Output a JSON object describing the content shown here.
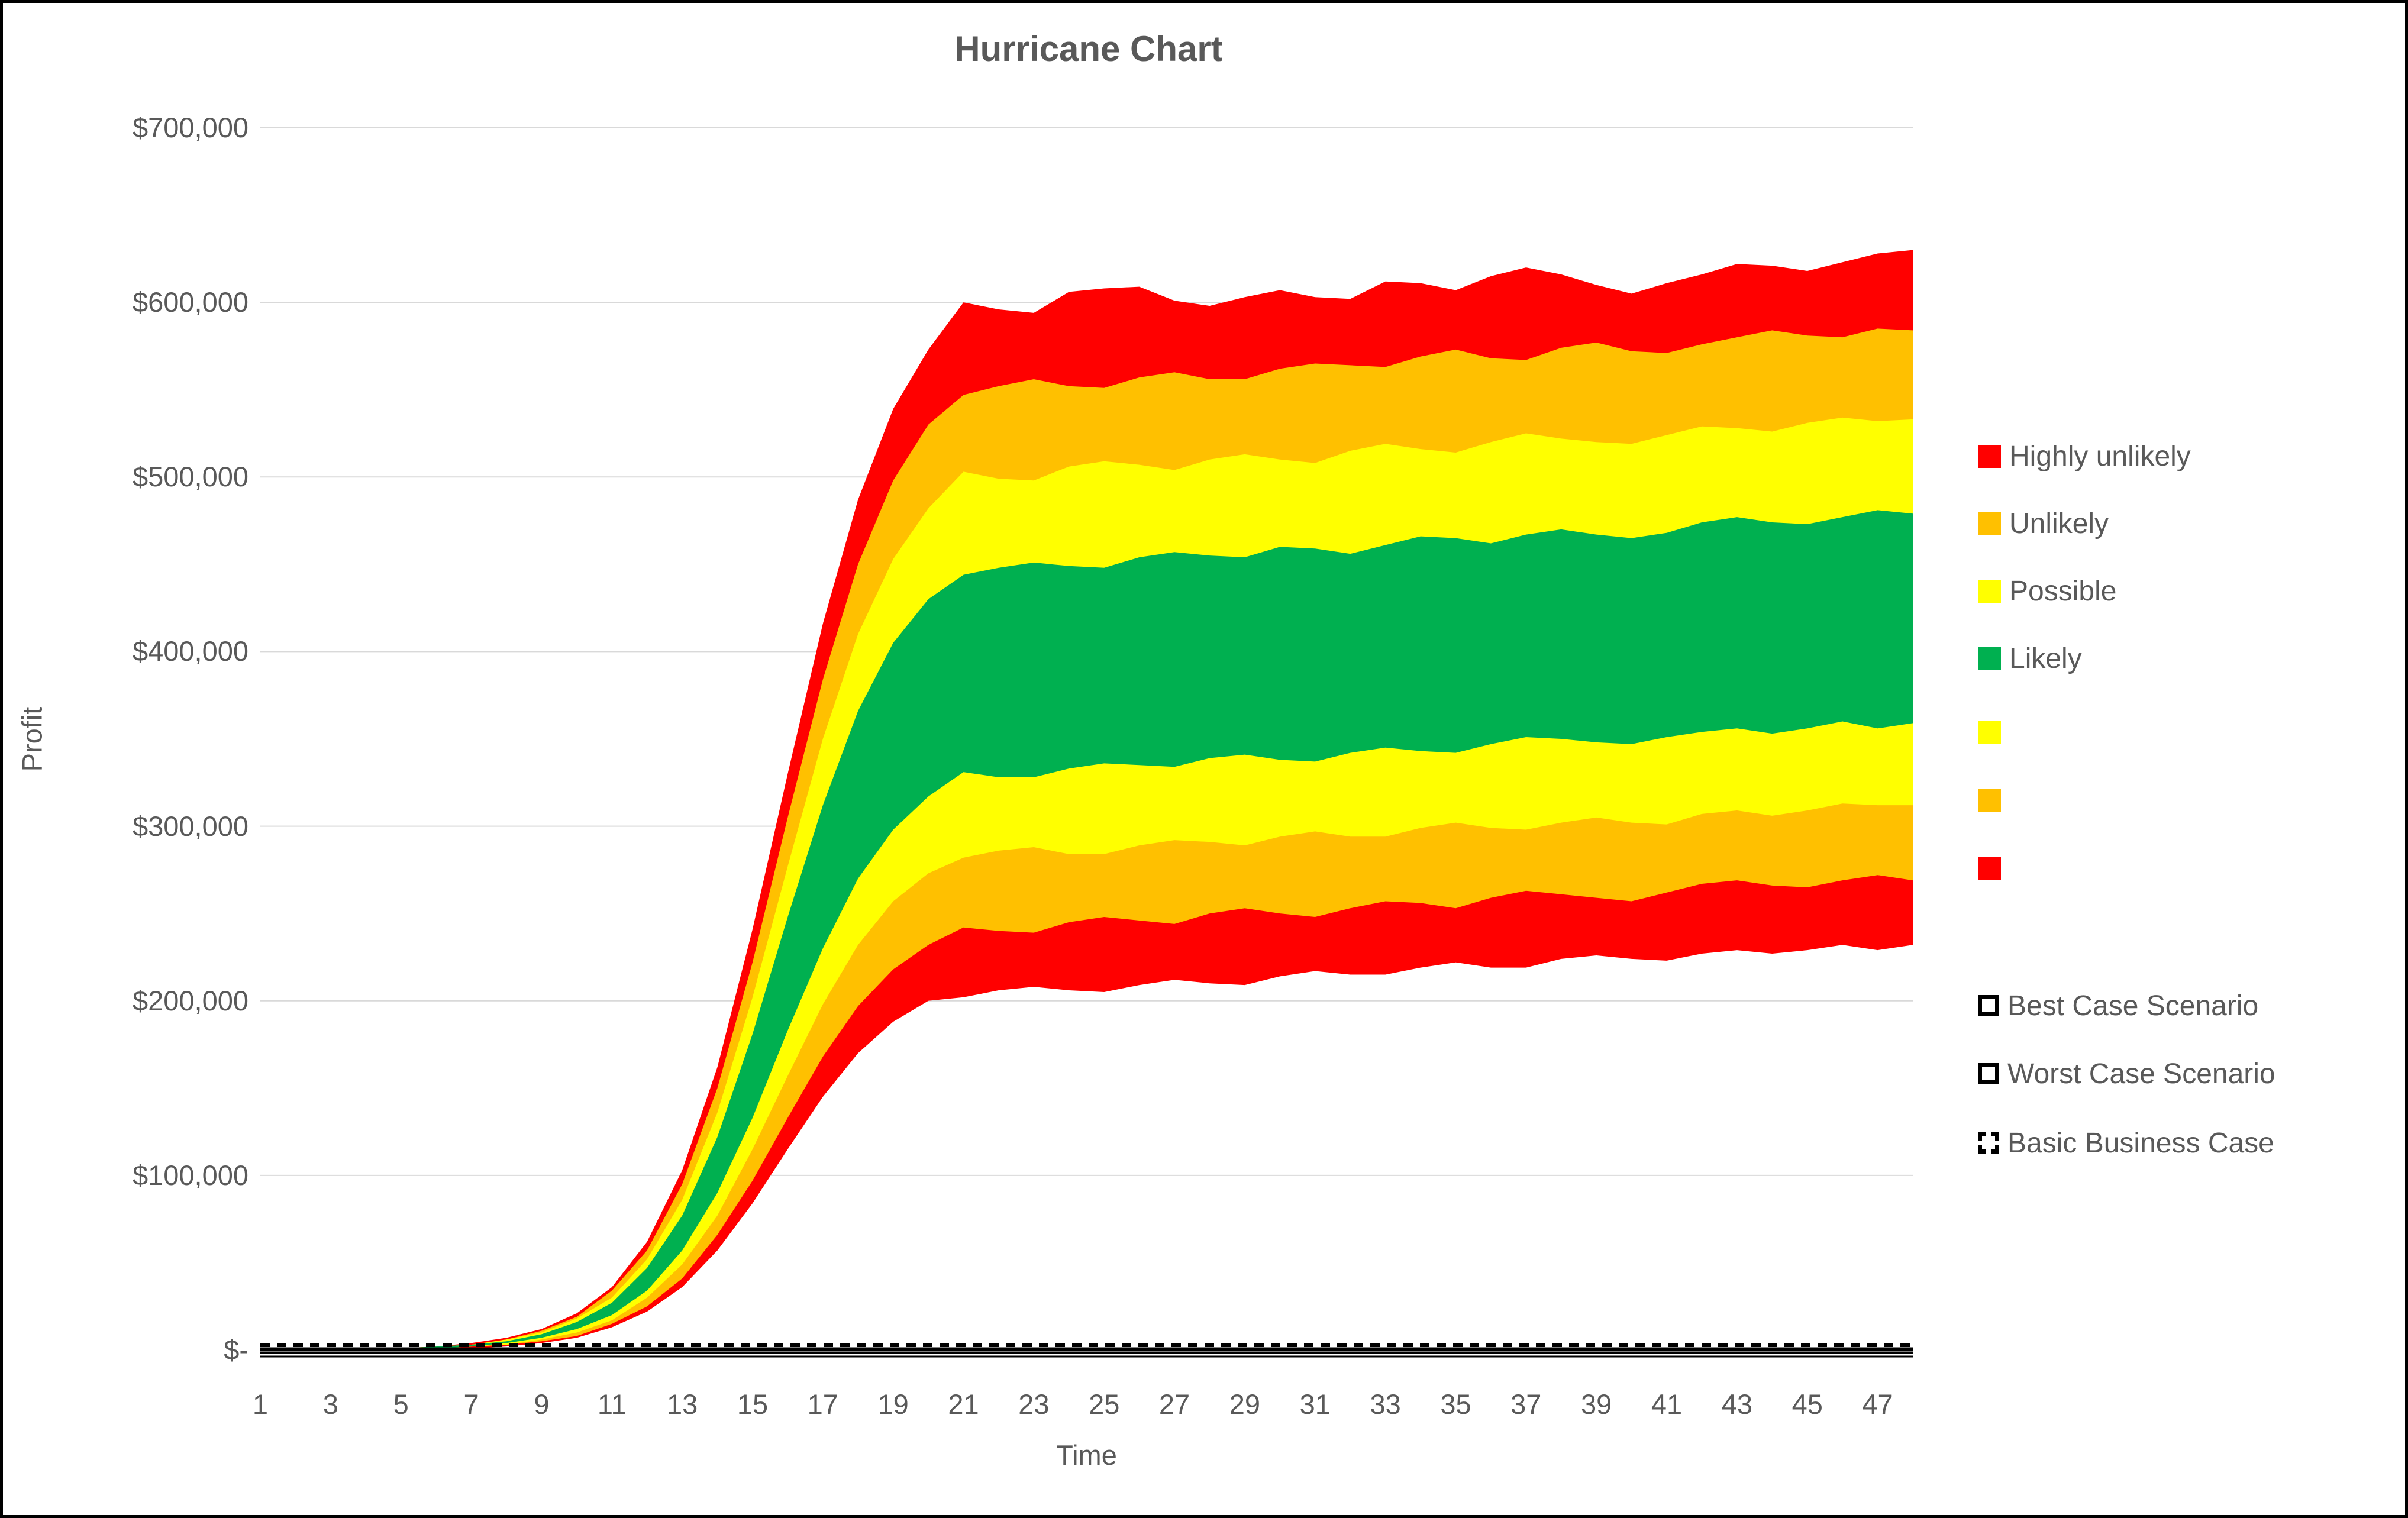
{
  "title": "Hurricane Chart",
  "axes": {
    "x_title": "Time",
    "y_title": "Profit",
    "y_tick_labels": [
      {
        "label": "$700,000",
        "value": 700
      },
      {
        "label": "$600,000",
        "value": 600
      },
      {
        "label": "$500,000",
        "value": 500
      },
      {
        "label": "$400,000",
        "value": 400
      },
      {
        "label": "$300,000",
        "value": 300
      },
      {
        "label": "$200,000",
        "value": 200
      },
      {
        "label": "$100,000",
        "value": 100
      },
      {
        "label": "$-",
        "value": 0
      }
    ],
    "x_tick_labels": [
      1,
      3,
      5,
      7,
      9,
      11,
      13,
      15,
      17,
      19,
      21,
      23,
      25,
      27,
      29,
      31,
      33,
      35,
      37,
      39,
      41,
      43,
      45,
      47
    ]
  },
  "colors": {
    "highly_unlikely": "#FF0000",
    "unlikely": "#FFC000",
    "possible": "#FFFF00",
    "likely": "#00B050",
    "grid": "#D9D9D9",
    "text": "#595959",
    "line": "#000000"
  },
  "legend": {
    "band_items": [
      {
        "label": "Highly unlikely",
        "color": "#FF0000"
      },
      {
        "label": "Unlikely",
        "color": "#FFC000"
      },
      {
        "label": "Possible",
        "color": "#FFFF00"
      },
      {
        "label": "Likely",
        "color": "#00B050"
      },
      {
        "label": "",
        "color": "#FFFF00"
      },
      {
        "label": "",
        "color": "#FFC000"
      },
      {
        "label": "",
        "color": "#FF0000"
      }
    ],
    "line_items": [
      {
        "label": "Best Case Scenario",
        "style": "solid"
      },
      {
        "label": "Worst Case Scenario",
        "style": "solid"
      },
      {
        "label": "Basic Business Case",
        "style": "dashed"
      }
    ]
  },
  "chart_data": {
    "type": "area",
    "title": "Hurricane Chart",
    "xlabel": "Time",
    "ylabel": "Profit",
    "xlim": [
      1,
      48
    ],
    "ylim_usd": [
      0,
      700000
    ],
    "grid": "horizontal",
    "legend_position": "right",
    "values_unit": "USD thousands",
    "x": [
      1,
      2,
      3,
      4,
      5,
      6,
      7,
      8,
      9,
      10,
      11,
      12,
      13,
      14,
      15,
      16,
      17,
      18,
      19,
      20,
      21,
      22,
      23,
      24,
      25,
      26,
      27,
      28,
      29,
      30,
      31,
      32,
      33,
      34,
      35,
      36,
      37,
      38,
      39,
      40,
      41,
      42,
      43,
      44,
      45,
      46,
      47,
      48
    ],
    "boundaries": {
      "worst_case": [
        0,
        0,
        0,
        0,
        0,
        1,
        1,
        2,
        4,
        7,
        13,
        22,
        36,
        57,
        84,
        115,
        145,
        170,
        188,
        200,
        202,
        206,
        208,
        206,
        205,
        209,
        212,
        210,
        209,
        214,
        217,
        215,
        215,
        219,
        222,
        219,
        219,
        224,
        226,
        224,
        223,
        227,
        229,
        227,
        229,
        232,
        229,
        232
      ],
      "red_orange_lower": [
        0,
        0,
        0,
        0,
        0,
        1,
        2,
        3,
        5,
        8,
        15,
        25,
        41,
        66,
        97,
        133,
        168,
        197,
        218,
        232,
        242,
        240,
        239,
        245,
        248,
        246,
        244,
        250,
        253,
        250,
        248,
        253,
        257,
        256,
        253,
        259,
        263,
        261,
        259,
        257,
        262,
        267,
        269,
        266,
        265,
        269,
        272,
        269
      ],
      "orange_yellow_lower": [
        0,
        0,
        0,
        0,
        1,
        1,
        2,
        3,
        6,
        10,
        17,
        30,
        49,
        77,
        115,
        157,
        198,
        232,
        257,
        273,
        282,
        286,
        288,
        284,
        284,
        289,
        292,
        291,
        289,
        294,
        297,
        294,
        294,
        299,
        302,
        299,
        298,
        302,
        305,
        302,
        301,
        307,
        309,
        306,
        309,
        313,
        312,
        312
      ],
      "yellow_green_lower": [
        0,
        0,
        0,
        0,
        1,
        1,
        2,
        4,
        7,
        12,
        20,
        34,
        57,
        90,
        133,
        183,
        230,
        270,
        298,
        317,
        331,
        328,
        328,
        333,
        336,
        335,
        334,
        339,
        341,
        338,
        337,
        342,
        345,
        343,
        342,
        347,
        351,
        350,
        348,
        347,
        351,
        354,
        356,
        353,
        356,
        360,
        356,
        359
      ],
      "green_yellow_upper": [
        0,
        0,
        0,
        1,
        1,
        2,
        3,
        5,
        9,
        16,
        27,
        47,
        77,
        122,
        181,
        248,
        312,
        366,
        405,
        430,
        444,
        448,
        451,
        449,
        448,
        454,
        457,
        455,
        454,
        460,
        459,
        456,
        461,
        466,
        465,
        462,
        467,
        470,
        467,
        465,
        468,
        474,
        477,
        474,
        473,
        477,
        481,
        479
      ],
      "yellow_orange_upper": [
        0,
        0,
        0,
        1,
        1,
        2,
        3,
        6,
        10,
        18,
        30,
        52,
        86,
        136,
        202,
        277,
        350,
        410,
        453,
        482,
        503,
        499,
        498,
        506,
        509,
        507,
        504,
        510,
        513,
        510,
        508,
        515,
        519,
        516,
        514,
        520,
        525,
        522,
        520,
        519,
        524,
        529,
        528,
        526,
        531,
        534,
        532,
        533
      ],
      "orange_red_upper": [
        0,
        0,
        0,
        1,
        1,
        2,
        3,
        6,
        11,
        19,
        34,
        57,
        95,
        150,
        222,
        305,
        384,
        450,
        498,
        530,
        547,
        552,
        556,
        552,
        551,
        557,
        560,
        556,
        556,
        562,
        565,
        564,
        563,
        569,
        573,
        568,
        567,
        574,
        577,
        572,
        571,
        576,
        580,
        584,
        581,
        580,
        585,
        584
      ],
      "best_case": [
        0,
        0,
        0,
        1,
        1,
        2,
        4,
        7,
        12,
        21,
        36,
        62,
        103,
        162,
        241,
        330,
        416,
        487,
        539,
        573,
        600,
        596,
        594,
        606,
        608,
        609,
        601,
        598,
        603,
        607,
        603,
        602,
        612,
        611,
        607,
        615,
        620,
        616,
        610,
        605,
        611,
        616,
        622,
        621,
        618,
        623,
        628,
        630
      ]
    },
    "bands": [
      {
        "name": "Highly unlikely",
        "color": "#FF0000",
        "lower": "worst_case",
        "upper": "best_case"
      },
      {
        "name": "Unlikely",
        "color": "#FFC000",
        "lower": "red_orange_lower",
        "upper": "orange_red_upper"
      },
      {
        "name": "Possible",
        "color": "#FFFF00",
        "lower": "orange_yellow_lower",
        "upper": "yellow_orange_upper"
      },
      {
        "name": "Likely",
        "color": "#00B050",
        "lower": "yellow_green_lower",
        "upper": "green_yellow_upper"
      }
    ],
    "scenario_lines": [
      {
        "name": "Basic Business Case",
        "value": 0,
        "style": "dashed",
        "width": 6
      },
      {
        "name": "Worst Case Scenario",
        "value": 0,
        "style": "solid",
        "width": 7
      },
      {
        "name": "Best Case Scenario",
        "value": 0,
        "style": "solid",
        "width": 3
      }
    ]
  }
}
